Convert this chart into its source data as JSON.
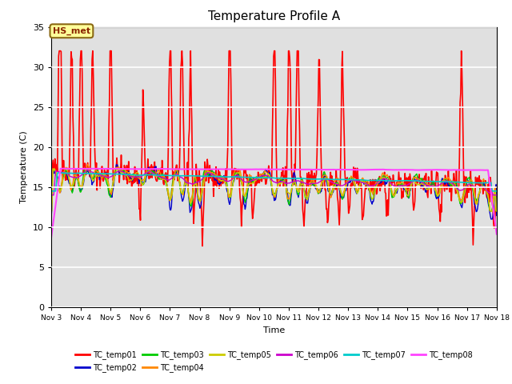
{
  "title": "Temperature Profile A",
  "xlabel": "Time",
  "ylabel": "Temperature (C)",
  "ylim": [
    0,
    35
  ],
  "xlim": [
    3,
    18
  ],
  "plot_bg": "#e0e0e0",
  "fig_bg": "#ffffff",
  "annotation_text": "HS_met",
  "annotation_fg": "#8b2500",
  "annotation_bg": "#ffff99",
  "annotation_border": "#8b6914",
  "x_ticks": [
    3,
    4,
    5,
    6,
    7,
    8,
    9,
    10,
    11,
    12,
    13,
    14,
    15,
    16,
    17,
    18
  ],
  "x_tick_labels": [
    "Nov 3",
    "Nov 4",
    "Nov 5",
    "Nov 6",
    "Nov 7",
    "Nov 8",
    "Nov 9",
    "Nov 10",
    "Nov 11",
    "Nov 12",
    "Nov 13",
    "Nov 14",
    "Nov 15",
    "Nov 16",
    "Nov 17",
    "Nov 18"
  ],
  "y_ticks": [
    0,
    5,
    10,
    15,
    20,
    25,
    30,
    35
  ],
  "series_order": [
    "TC_temp01",
    "TC_temp02",
    "TC_temp03",
    "TC_temp04",
    "TC_temp05",
    "TC_temp06",
    "TC_temp07",
    "TC_temp08"
  ],
  "series_colors": {
    "TC_temp01": "#ff0000",
    "TC_temp02": "#0000cc",
    "TC_temp03": "#00cc00",
    "TC_temp04": "#ff8800",
    "TC_temp05": "#cccc00",
    "TC_temp06": "#cc00cc",
    "TC_temp07": "#00cccc",
    "TC_temp08": "#ff44ff"
  },
  "series_lw": {
    "TC_temp01": 1.2,
    "TC_temp02": 1.0,
    "TC_temp03": 1.0,
    "TC_temp04": 1.0,
    "TC_temp05": 1.0,
    "TC_temp06": 1.0,
    "TC_temp07": 1.2,
    "TC_temp08": 1.5
  }
}
